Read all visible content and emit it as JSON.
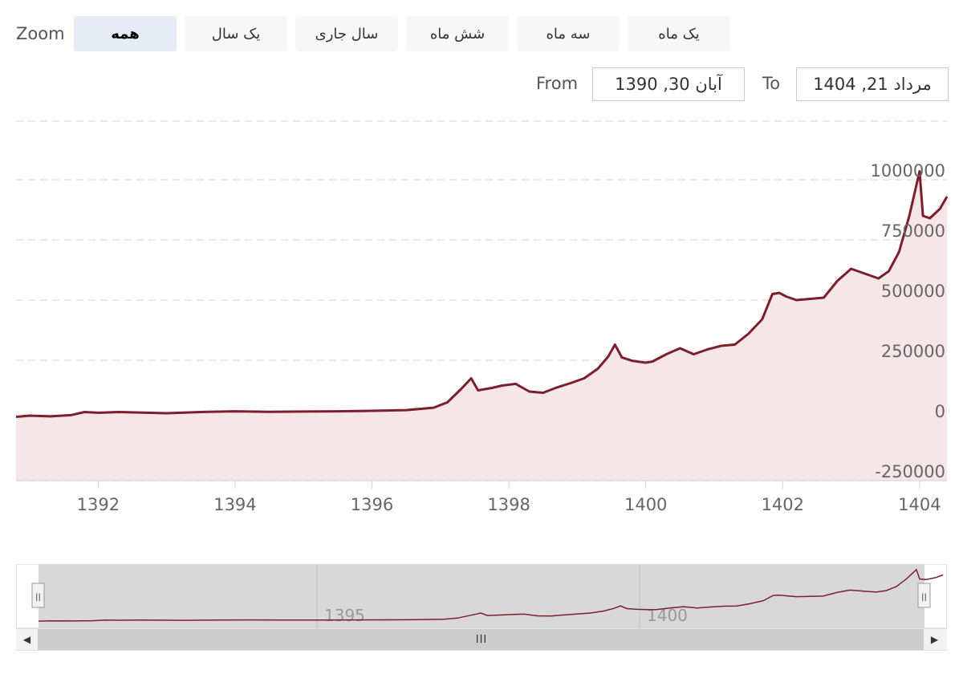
{
  "range_selector": {
    "zoom_label": "Zoom",
    "buttons": [
      {
        "label": "همه",
        "active": true
      },
      {
        "label": "یک سال",
        "active": false
      },
      {
        "label": "سال جاری",
        "active": false
      },
      {
        "label": "شش ماه",
        "active": false
      },
      {
        "label": "سه ماه",
        "active": false
      },
      {
        "label": "یک ماه",
        "active": false
      }
    ],
    "from_label": "From",
    "from_value": "آبان 30, 1390",
    "to_label": "To",
    "to_value": "مرداد 21, 1404"
  },
  "navigator": {
    "tick_labels": [
      "1395",
      "1400"
    ],
    "thumb_glyph": "III",
    "left_arrow": "◀",
    "right_arrow": "▶",
    "handle_glyph": "||"
  },
  "colors": {
    "line": "#7b1f2c",
    "area": "#f5e6e8",
    "grid": "#e3e3e3",
    "axis_text": "#666666"
  },
  "chart_data": {
    "type": "area",
    "title": "",
    "xlabel": "",
    "ylabel": "",
    "xlim": [
      1390.8,
      1404.4
    ],
    "ylim": [
      -250000,
      1000000
    ],
    "x_ticks": [
      "1392",
      "1394",
      "1396",
      "1398",
      "1400",
      "1402",
      "1404"
    ],
    "y_ticks": [
      "-250000",
      "0",
      "250000",
      "500000",
      "750000",
      "1000000"
    ],
    "grid": true,
    "legend": "none",
    "series": [
      {
        "x": [
          1390.8,
          1391.0,
          1391.3,
          1391.6,
          1391.8,
          1392.0,
          1392.3,
          1392.6,
          1393.0,
          1393.5,
          1394.0,
          1394.5,
          1395.0,
          1395.5,
          1396.0,
          1396.5,
          1396.9,
          1397.1,
          1397.3,
          1397.45,
          1397.55,
          1397.75,
          1397.9,
          1398.1,
          1398.3,
          1398.5,
          1398.7,
          1398.9,
          1399.1,
          1399.3,
          1399.45,
          1399.55,
          1399.65,
          1399.8,
          1400.0,
          1400.1,
          1400.3,
          1400.5,
          1400.7,
          1400.9,
          1401.1,
          1401.3,
          1401.5,
          1401.7,
          1401.85,
          1401.95,
          1402.05,
          1402.2,
          1402.4,
          1402.6,
          1402.8,
          1403.0,
          1403.2,
          1403.4,
          1403.55,
          1403.7,
          1403.85,
          1404.0,
          1404.05,
          1404.15,
          1404.3,
          1404.4
        ],
        "values": [
          15000,
          20000,
          17000,
          22000,
          35000,
          32000,
          35000,
          33000,
          30000,
          35000,
          38000,
          36000,
          37000,
          38000,
          40000,
          43000,
          53000,
          75000,
          130000,
          175000,
          125000,
          135000,
          145000,
          152000,
          120000,
          115000,
          137000,
          155000,
          175000,
          215000,
          265000,
          315000,
          262000,
          248000,
          240000,
          245000,
          275000,
          300000,
          275000,
          295000,
          310000,
          315000,
          360000,
          420000,
          525000,
          530000,
          515000,
          500000,
          505000,
          510000,
          580000,
          630000,
          610000,
          590000,
          620000,
          700000,
          850000,
          1035000,
          850000,
          840000,
          880000,
          930000
        ]
      }
    ]
  }
}
